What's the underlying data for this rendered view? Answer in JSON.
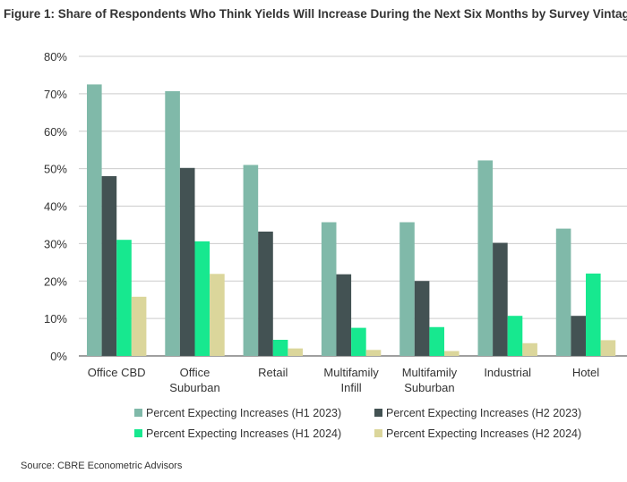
{
  "chart_data": {
    "type": "bar",
    "title": "Figure 1: Share of Respondents Who Think Yields Will Increase During the Next Six Months by Survey Vintag",
    "categories": [
      [
        "Office CBD"
      ],
      [
        "Office",
        "Suburban"
      ],
      [
        "Retail"
      ],
      [
        "Multifamily",
        "Infill"
      ],
      [
        "Multifamily",
        "Suburban"
      ],
      [
        "Industrial"
      ],
      [
        "Hotel"
      ]
    ],
    "series": [
      {
        "name": "Percent Expecting Increases (H1 2023)",
        "color": "#80b9a9",
        "values": [
          72.5,
          70.7,
          51,
          35.7,
          35.7,
          52.2,
          34
        ]
      },
      {
        "name": "Percent Expecting Increases (H2 2023)",
        "color": "#435253",
        "values": [
          48,
          50.2,
          33.2,
          21.8,
          20,
          30.2,
          10.7
        ]
      },
      {
        "name": "Percent Expecting Increases (H1 2024)",
        "color": "#17e88f",
        "values": [
          31,
          30.6,
          4.3,
          7.5,
          7.7,
          10.7,
          22
        ]
      },
      {
        "name": "Percent Expecting Increases (H2 2024)",
        "color": "#dbd69b",
        "values": [
          15.8,
          21.9,
          2,
          1.6,
          1.3,
          3.4,
          4.2
        ]
      }
    ],
    "yticks": [
      "0%",
      "10%",
      "20%",
      "30%",
      "40%",
      "50%",
      "60%",
      "70%",
      "80%"
    ],
    "ylim": [
      0,
      80
    ],
    "grid": true,
    "legend": "bottom"
  },
  "source": "Source: CBRE Econometric Advisors"
}
